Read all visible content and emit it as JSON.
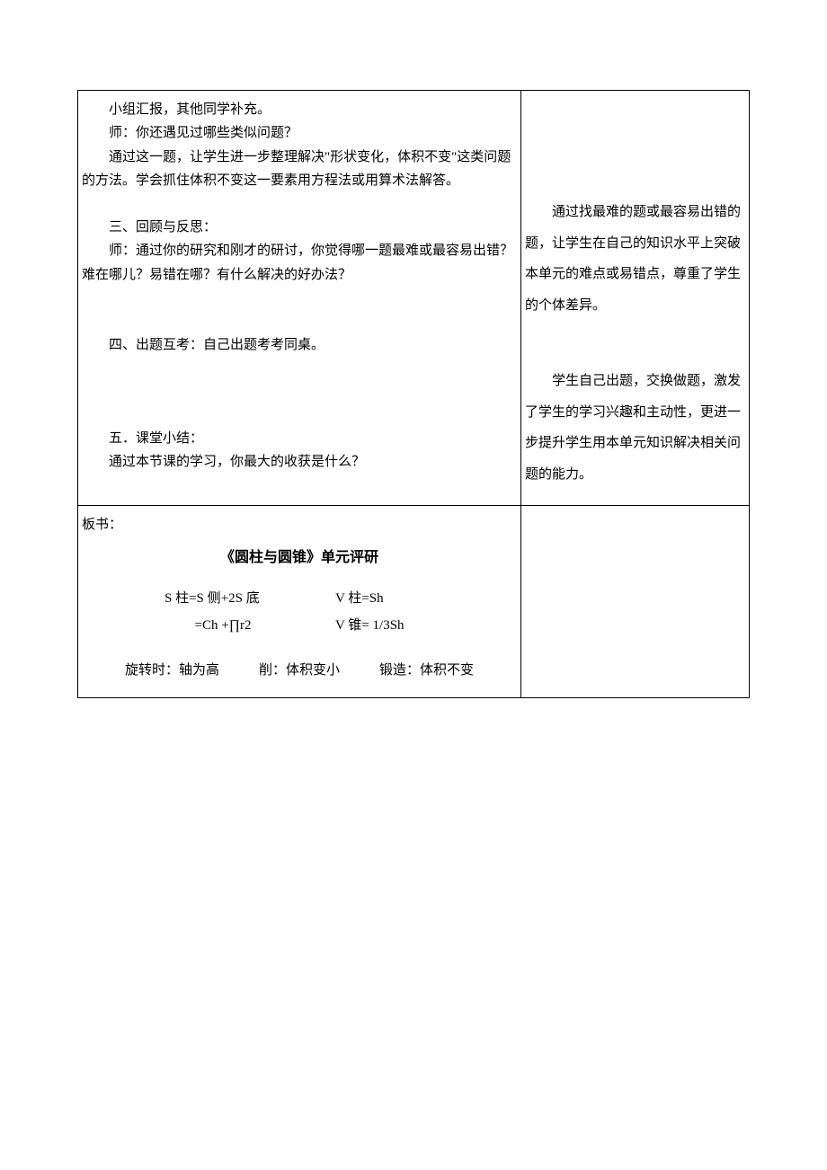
{
  "leftCell": {
    "p1": "小组汇报，其他同学补充。",
    "p2": "师：你还遇见过哪些类似问题？",
    "p3": "通过这一题，让学生进一步整理解决\"形状变化，体积不变\"这类问题的方法。学会抓住体积不变这一要素用方程法或用算术法解答。",
    "sec3_title": "三、回顾与反思：",
    "sec3_p1": "师：通过你的研究和刚才的研讨，你觉得哪一题最难或最容易出错？难在哪儿？易错在哪？有什么解决的好办法？",
    "sec4_title": "四、出题互考：自己出题考考同桌。",
    "sec5_title": "五．课堂小结：",
    "sec5_p1": "通过本节课的学习，你最大的收获是什么？"
  },
  "rightCell": {
    "r1": "通过找最难的题或最容易出错的题，让学生在自己的知识水平上突破本单元的难点或易错点，尊重了学生的个体差异。",
    "r2": "学生自己出题，交换做题，激发了学生的学习兴趣和主动性，更进一步提升学生用本单元知识解决相关问题的能力。"
  },
  "board": {
    "label": "板书：",
    "title": "《圆柱与圆锥》单元评研",
    "formula1_left": "S 柱=S 侧+2S 底",
    "formula1_right": "V 柱=Sh",
    "formula2_left": "=Ch +∏r2",
    "formula2_right": "V 锥= 1/3Sh",
    "bottom1": "旋转时：轴为高",
    "bottom2": "削：体积变小",
    "bottom3": "锻造：体积不变"
  },
  "style": {
    "fontSize": 15,
    "borderColor": "#000000",
    "backgroundColor": "#ffffff",
    "lineHeight": 1.75
  }
}
